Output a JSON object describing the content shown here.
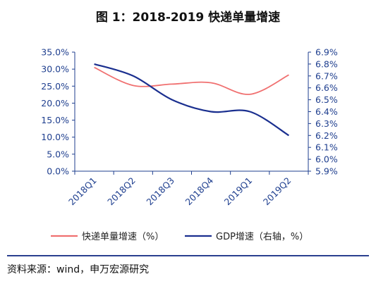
{
  "page": {
    "title": "图 1：2018-2019 快递单量增速",
    "source": "资料来源：wind，申万宏源研究"
  },
  "chart_data": {
    "type": "line",
    "categories": [
      "2018Q1",
      "2018Q2",
      "2018Q3",
      "2018Q4",
      "2019Q1",
      "2019Q2"
    ],
    "series": [
      {
        "name": "快递单量增速（%）",
        "axis": "left",
        "color": "#f07070",
        "values": [
          30.5,
          25.2,
          25.6,
          26.0,
          22.6,
          28.3
        ]
      },
      {
        "name": "GDP增速（右轴，%）",
        "axis": "right",
        "color": "#1a2f8f",
        "values": [
          6.8,
          6.7,
          6.5,
          6.4,
          6.4,
          6.2
        ]
      }
    ],
    "y_left": {
      "min": 0,
      "max": 35,
      "ticks": [
        0,
        5,
        10,
        15,
        20,
        25,
        30,
        35
      ],
      "tick_labels": [
        "0.0%",
        "5.0%",
        "10.0%",
        "15.0%",
        "20.0%",
        "25.0%",
        "30.0%",
        "35.0%"
      ]
    },
    "y_right": {
      "min": 5.9,
      "max": 6.9,
      "ticks": [
        5.9,
        6.0,
        6.1,
        6.2,
        6.3,
        6.4,
        6.5,
        6.6,
        6.7,
        6.8,
        6.9
      ],
      "tick_labels": [
        "5.9%",
        "6.0%",
        "6.1%",
        "6.2%",
        "6.3%",
        "6.4%",
        "6.5%",
        "6.6%",
        "6.7%",
        "6.8%",
        "6.9%"
      ]
    },
    "grid": false,
    "legend_position": "bottom"
  }
}
